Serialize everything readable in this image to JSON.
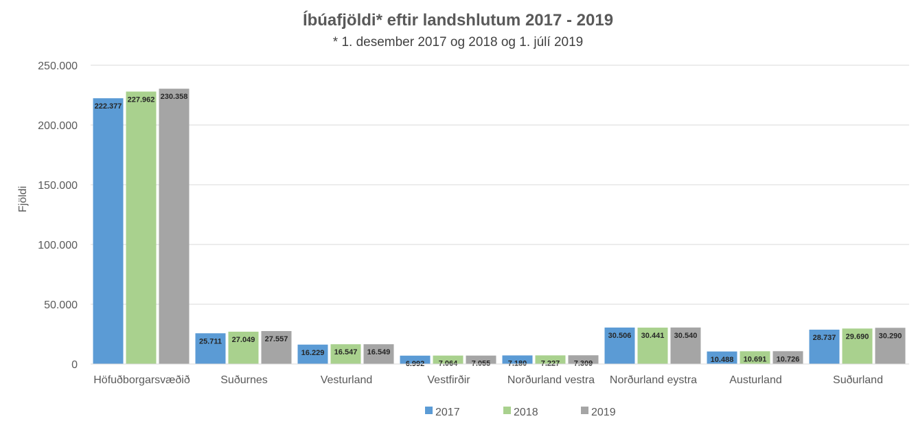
{
  "chart_data": {
    "type": "bar",
    "title": "Íbúafjöldi* eftir landshlutum 2017 - 2019",
    "subtitle": "* 1. desember 2017 og 2018 og 1. júlí 2019",
    "xlabel": "",
    "ylabel": "Fjöldi",
    "ylim": [
      0,
      250000
    ],
    "yticks": [
      0,
      50000,
      100000,
      150000,
      200000,
      250000
    ],
    "ytick_labels": [
      "0",
      "50.000",
      "100.000",
      "150.000",
      "200.000",
      "250.000"
    ],
    "grid": true,
    "legend_position": "bottom",
    "categories": [
      "Höfuðborgarsvæðið",
      "Suðurnes",
      "Vesturland",
      "Vestfirðir",
      "Norðurland vestra",
      "Norðurland eystra",
      "Austurland",
      "Suðurland"
    ],
    "series": [
      {
        "name": "2017",
        "color": "#5b9bd5",
        "values": [
          222377,
          25711,
          16229,
          6992,
          7180,
          30506,
          10488,
          28737
        ],
        "labels": [
          "222.377",
          "25.711",
          "16.229",
          "6.992",
          "7.180",
          "30.506",
          "10.488",
          "28.737"
        ]
      },
      {
        "name": "2018",
        "color": "#a9d18e",
        "values": [
          227962,
          27049,
          16547,
          7064,
          7227,
          30441,
          10691,
          29690
        ],
        "labels": [
          "227.962",
          "27.049",
          "16.547",
          "7.064",
          "7.227",
          "30.441",
          "10.691",
          "29.690"
        ]
      },
      {
        "name": "2019",
        "color": "#a5a5a5",
        "values": [
          230358,
          27557,
          16549,
          7055,
          7309,
          30540,
          10726,
          30290
        ],
        "labels": [
          "230.358",
          "27.557",
          "16.549",
          "7.055",
          "7.309",
          "30.540",
          "10.726",
          "30.290"
        ]
      }
    ]
  }
}
